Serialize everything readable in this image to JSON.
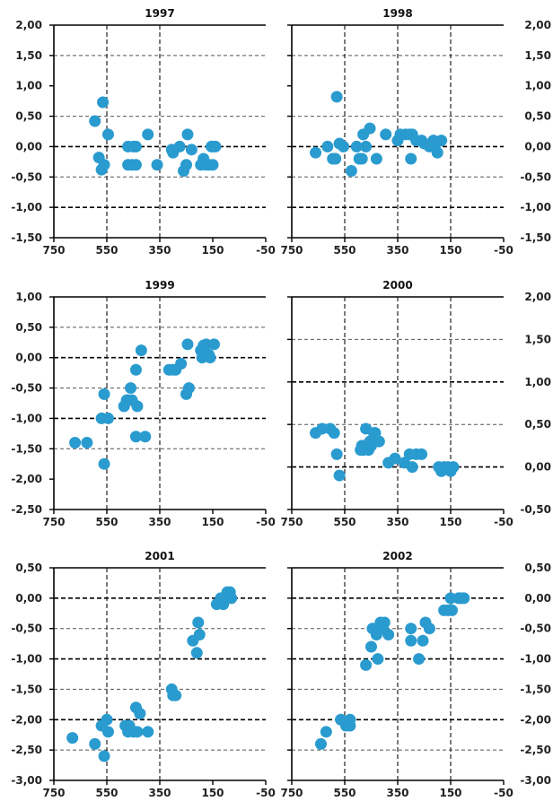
{
  "chart_data": [
    {
      "type": "scatter",
      "title": "1997",
      "xlabel": "",
      "ylabel": "",
      "xlim": [
        750,
        -50
      ],
      "ylim": [
        -1.5,
        2.0
      ],
      "x_ticks": [
        "750",
        "550",
        "350",
        "150",
        "-50"
      ],
      "y_ticks": [
        "2,00",
        "1,50",
        "1,00",
        "0,50",
        "0,00",
        "-0,50",
        "-1,00",
        "-1,50"
      ],
      "y_axis_side": "left",
      "dashed_h": [
        1.5,
        0.5,
        -0.5
      ],
      "heavy_dashed_h": [
        0.0,
        -1.0
      ],
      "solid_h": [
        2.0
      ],
      "dashed_v": [
        550,
        350
      ],
      "color": "#2a9bcf",
      "points": [
        [
          595,
          0.42
        ],
        [
          580,
          -0.18
        ],
        [
          570,
          -0.38
        ],
        [
          565,
          0.73
        ],
        [
          560,
          -0.3
        ],
        [
          545,
          0.2
        ],
        [
          470,
          -0.3
        ],
        [
          470,
          0.0
        ],
        [
          455,
          -0.3
        ],
        [
          450,
          0.0
        ],
        [
          440,
          0.0
        ],
        [
          440,
          -0.3
        ],
        [
          395,
          0.2
        ],
        [
          360,
          -0.3
        ],
        [
          305,
          -0.05
        ],
        [
          300,
          -0.1
        ],
        [
          275,
          0.0
        ],
        [
          260,
          -0.4
        ],
        [
          250,
          -0.3
        ],
        [
          245,
          0.2
        ],
        [
          230,
          -0.05
        ],
        [
          195,
          -0.3
        ],
        [
          185,
          -0.2
        ],
        [
          175,
          -0.3
        ],
        [
          165,
          -0.3
        ],
        [
          155,
          0.0
        ],
        [
          150,
          -0.3
        ],
        [
          150,
          0.0
        ],
        [
          140,
          0.0
        ]
      ]
    },
    {
      "type": "scatter",
      "title": "1998",
      "xlabel": "",
      "ylabel": "",
      "xlim": [
        750,
        -50
      ],
      "ylim": [
        -1.5,
        2.0
      ],
      "x_ticks": [
        "750",
        "550",
        "350",
        "150",
        "-50"
      ],
      "y_ticks": [
        "2,00",
        "1,50",
        "1,00",
        "0,50",
        "0,00",
        "-0,50",
        "-1,00",
        "-1,50"
      ],
      "y_axis_side": "right",
      "dashed_h": [
        1.5,
        0.5,
        -0.5
      ],
      "heavy_dashed_h": [
        0.0,
        -1.0
      ],
      "solid_h": [
        2.0
      ],
      "dashed_v": [
        550,
        350,
        150
      ],
      "color": "#2a9bcf",
      "points": [
        [
          660,
          -0.1
        ],
        [
          615,
          0.0
        ],
        [
          595,
          -0.2
        ],
        [
          585,
          -0.2
        ],
        [
          580,
          0.82
        ],
        [
          570,
          0.05
        ],
        [
          555,
          0.0
        ],
        [
          525,
          -0.4
        ],
        [
          505,
          0.0
        ],
        [
          495,
          -0.2
        ],
        [
          485,
          -0.2
        ],
        [
          480,
          0.2
        ],
        [
          470,
          0.0
        ],
        [
          455,
          0.3
        ],
        [
          430,
          -0.2
        ],
        [
          395,
          0.2
        ],
        [
          350,
          0.1
        ],
        [
          340,
          0.2
        ],
        [
          320,
          0.2
        ],
        [
          305,
          0.2
        ],
        [
          300,
          -0.2
        ],
        [
          295,
          0.2
        ],
        [
          280,
          0.1
        ],
        [
          260,
          0.1
        ],
        [
          250,
          0.05
        ],
        [
          230,
          0.0
        ],
        [
          215,
          0.1
        ],
        [
          210,
          0.0
        ],
        [
          200,
          -0.1
        ],
        [
          185,
          0.1
        ]
      ]
    },
    {
      "type": "scatter",
      "title": "1999",
      "xlabel": "",
      "ylabel": "",
      "xlim": [
        750,
        -50
      ],
      "ylim": [
        -2.5,
        1.0
      ],
      "x_ticks": [
        "750",
        "550",
        "350",
        "150",
        "-50"
      ],
      "y_ticks": [
        "1,00",
        "0,50",
        "0,00",
        "-0,50",
        "-1,00",
        "-1,50",
        "-2,00",
        "-2,50"
      ],
      "y_axis_side": "left",
      "dashed_h": [
        0.5,
        -0.5,
        -1.5
      ],
      "heavy_dashed_h": [
        0.0,
        -1.0
      ],
      "solid_h": [
        1.0
      ],
      "dashed_v": [
        550,
        350
      ],
      "color": "#2a9bcf",
      "points": [
        [
          670,
          -1.4
        ],
        [
          625,
          -1.4
        ],
        [
          570,
          -1.0
        ],
        [
          560,
          -0.6
        ],
        [
          560,
          -1.75
        ],
        [
          545,
          -1.0
        ],
        [
          485,
          -0.8
        ],
        [
          475,
          -0.7
        ],
        [
          470,
          -0.7
        ],
        [
          460,
          -0.5
        ],
        [
          455,
          -0.7
        ],
        [
          440,
          -0.2
        ],
        [
          440,
          -1.3
        ],
        [
          435,
          -0.8
        ],
        [
          420,
          0.12
        ],
        [
          405,
          -1.3
        ],
        [
          315,
          -0.2
        ],
        [
          300,
          -0.2
        ],
        [
          290,
          -0.2
        ],
        [
          270,
          -0.1
        ],
        [
          250,
          -0.6
        ],
        [
          245,
          0.22
        ],
        [
          240,
          -0.5
        ],
        [
          195,
          0.12
        ],
        [
          190,
          0.0
        ],
        [
          185,
          0.2
        ],
        [
          175,
          0.22
        ],
        [
          165,
          0.05
        ],
        [
          160,
          0.0
        ],
        [
          145,
          0.22
        ]
      ]
    },
    {
      "type": "scatter",
      "title": "2000",
      "xlabel": "",
      "ylabel": "",
      "xlim": [
        750,
        -50
      ],
      "ylim": [
        -0.5,
        2.0
      ],
      "x_ticks": [
        "750",
        "550",
        "350",
        "150",
        "-50"
      ],
      "y_ticks": [
        "2,00",
        "1,50",
        "1,00",
        "0,50",
        "0,00",
        "-0,50"
      ],
      "y_axis_side": "right",
      "dashed_h": [
        1.5,
        0.5
      ],
      "heavy_dashed_h": [
        1.0,
        0.0
      ],
      "solid_h": [
        2.0
      ],
      "dashed_v": [
        550,
        350,
        150
      ],
      "color": "#2a9bcf",
      "points": [
        [
          660,
          0.4
        ],
        [
          635,
          0.45
        ],
        [
          605,
          0.45
        ],
        [
          590,
          0.4
        ],
        [
          580,
          0.15
        ],
        [
          570,
          -0.1
        ],
        [
          490,
          0.2
        ],
        [
          485,
          0.25
        ],
        [
          480,
          0.2
        ],
        [
          470,
          0.45
        ],
        [
          460,
          0.2
        ],
        [
          455,
          0.3
        ],
        [
          450,
          0.25
        ],
        [
          440,
          0.4
        ],
        [
          435,
          0.4
        ],
        [
          420,
          0.3
        ],
        [
          385,
          0.05
        ],
        [
          360,
          0.1
        ],
        [
          325,
          0.05
        ],
        [
          305,
          0.15
        ],
        [
          295,
          0.0
        ],
        [
          280,
          0.15
        ],
        [
          260,
          0.15
        ],
        [
          195,
          0.0
        ],
        [
          185,
          -0.05
        ],
        [
          175,
          0.0
        ],
        [
          160,
          0.0
        ],
        [
          150,
          -0.05
        ],
        [
          140,
          0.0
        ]
      ]
    },
    {
      "type": "scatter",
      "title": "2001",
      "xlabel": "",
      "ylabel": "",
      "xlim": [
        750,
        -50
      ],
      "ylim": [
        -3.0,
        0.5
      ],
      "x_ticks": [
        "750",
        "550",
        "350",
        "150",
        "-50"
      ],
      "y_ticks": [
        "0,50",
        "0,00",
        "-0,50",
        "-1,00",
        "-1,50",
        "-2,00",
        "-2,50",
        "-3,00"
      ],
      "y_axis_side": "left",
      "dashed_h": [
        -0.5,
        -1.5,
        -2.5
      ],
      "heavy_dashed_h": [
        0.0,
        -1.0,
        -2.0
      ],
      "solid_h": [
        0.5
      ],
      "dashed_v": [
        550,
        350
      ],
      "color": "#2a9bcf",
      "points": [
        [
          680,
          -2.3
        ],
        [
          595,
          -2.4
        ],
        [
          570,
          -2.1
        ],
        [
          560,
          -2.6
        ],
        [
          550,
          -2.0
        ],
        [
          545,
          -2.2
        ],
        [
          480,
          -2.1
        ],
        [
          470,
          -2.2
        ],
        [
          465,
          -2.1
        ],
        [
          450,
          -2.2
        ],
        [
          440,
          -1.8
        ],
        [
          435,
          -2.2
        ],
        [
          425,
          -1.9
        ],
        [
          395,
          -2.2
        ],
        [
          305,
          -1.5
        ],
        [
          300,
          -1.6
        ],
        [
          290,
          -1.6
        ],
        [
          225,
          -0.7
        ],
        [
          210,
          -0.9
        ],
        [
          205,
          -0.4
        ],
        [
          200,
          -0.6
        ],
        [
          135,
          -0.1
        ],
        [
          120,
          0.0
        ],
        [
          110,
          -0.1
        ],
        [
          95,
          0.1
        ],
        [
          85,
          0.1
        ],
        [
          80,
          0.0
        ]
      ]
    },
    {
      "type": "scatter",
      "title": "2002",
      "xlabel": "",
      "ylabel": "",
      "xlim": [
        750,
        -50
      ],
      "ylim": [
        -3.0,
        0.5
      ],
      "x_ticks": [
        "750",
        "550",
        "350",
        "150",
        "-50"
      ],
      "y_ticks": [
        "0,50",
        "0,00",
        "-0,50",
        "-1,00",
        "-1,50",
        "-2,00",
        "-2,50",
        "-3,00"
      ],
      "y_axis_side": "right",
      "dashed_h": [
        -0.5,
        -1.5,
        -2.5
      ],
      "heavy_dashed_h": [
        0.0,
        -1.0,
        -2.0
      ],
      "solid_h": [
        0.5
      ],
      "dashed_v": [
        550,
        350,
        150
      ],
      "color": "#2a9bcf",
      "points": [
        [
          640,
          -2.4
        ],
        [
          620,
          -2.2
        ],
        [
          565,
          -2.0
        ],
        [
          545,
          -2.1
        ],
        [
          530,
          -2.0
        ],
        [
          530,
          -2.1
        ],
        [
          470,
          -1.1
        ],
        [
          450,
          -0.8
        ],
        [
          445,
          -0.5
        ],
        [
          430,
          -0.6
        ],
        [
          425,
          -1.0
        ],
        [
          415,
          -0.4
        ],
        [
          405,
          -0.5
        ],
        [
          400,
          -0.4
        ],
        [
          385,
          -0.6
        ],
        [
          300,
          -0.5
        ],
        [
          300,
          -0.7
        ],
        [
          270,
          -1.0
        ],
        [
          255,
          -0.7
        ],
        [
          245,
          -0.4
        ],
        [
          230,
          -0.5
        ],
        [
          175,
          -0.2
        ],
        [
          160,
          -0.2
        ],
        [
          150,
          0.0
        ],
        [
          145,
          -0.2
        ],
        [
          120,
          0.0
        ],
        [
          110,
          0.0
        ],
        [
          100,
          0.0
        ]
      ]
    }
  ]
}
